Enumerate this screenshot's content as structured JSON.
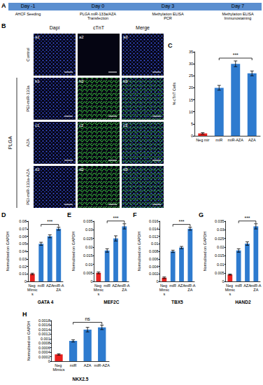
{
  "timeline": {
    "panel": "A",
    "days": [
      {
        "label": "Day -1",
        "event": [
          "AHCF Seeding"
        ]
      },
      {
        "label": "Day 0",
        "event": [
          "PLGA miR-133a/AZA",
          "Transfection"
        ]
      },
      {
        "label": "Day 3",
        "event": [
          "Methylation ELISA",
          "PCR"
        ]
      },
      {
        "label": "Day 7",
        "event": [
          "Methylation ELISA",
          "Immunostaining"
        ]
      }
    ]
  },
  "micrographs": {
    "panel": "B",
    "columns": [
      "Dapi",
      "cTnT",
      "Merge"
    ],
    "group": "PLGA",
    "rows": [
      {
        "label": "Control",
        "cells": [
          "a1",
          "a2",
          "a3"
        ]
      },
      {
        "label": "PEI-miR-133a",
        "cells": [
          "b1",
          "b2",
          "b3"
        ]
      },
      {
        "label": "AZA",
        "cells": [
          "c1",
          "c2",
          "c3"
        ]
      },
      {
        "label": "PEI-miR-133a-AZA",
        "cells": [
          "d1",
          "d2",
          "d3"
        ]
      }
    ]
  },
  "chart_data": [
    {
      "type": "bar",
      "panel": "C",
      "ylabel": "% cTnT Cells",
      "categories": [
        "Neg mir",
        "miR",
        "miR-AZA",
        "AZA"
      ],
      "values": [
        1,
        20,
        30,
        26
      ],
      "errors": [
        0.3,
        1,
        1.2,
        1
      ],
      "colors": [
        "#e8201e",
        "#2e7bcf",
        "#2e7bcf",
        "#2e7bcf"
      ],
      "ylim": [
        0,
        35
      ],
      "yticks": [
        0,
        5,
        10,
        15,
        20,
        25,
        30,
        35
      ],
      "grid": false,
      "annotation": {
        "text": "***",
        "from": "miR",
        "to": "AZA"
      }
    },
    {
      "type": "bar",
      "panel": "D",
      "ylabel": "Normalised on GAPDH",
      "xlabel": "GATA 4",
      "categories": [
        "Neg Mimics",
        "miR",
        "AZA",
        "miR-AZA"
      ],
      "values": [
        0.01,
        0.05,
        0.06,
        0.07
      ],
      "errors": [
        0.001,
        0.002,
        0.002,
        0.002
      ],
      "colors": [
        "#e8201e",
        "#2e7bcf",
        "#2e7bcf",
        "#2e7bcf"
      ],
      "ylim": [
        0,
        0.08
      ],
      "yticks": [
        0,
        0.01,
        0.02,
        0.03,
        0.04,
        0.05,
        0.06,
        0.07,
        0.08
      ],
      "grid": false,
      "annotation": {
        "text": "***",
        "from": "miR",
        "to": "miR-AZA"
      }
    },
    {
      "type": "bar",
      "panel": "E",
      "ylabel": "Normalised on GAPDH",
      "xlabel": "MEF2C",
      "categories": [
        "Neg Mimics",
        "miR",
        "AZA",
        "miR-AZA"
      ],
      "values": [
        0.005,
        0.018,
        0.025,
        0.032
      ],
      "errors": [
        0.0005,
        0.001,
        0.0015,
        0.0015
      ],
      "colors": [
        "#e8201e",
        "#2e7bcf",
        "#2e7bcf",
        "#2e7bcf"
      ],
      "ylim": [
        0,
        0.035
      ],
      "yticks": [
        0,
        0.005,
        0.01,
        0.015,
        0.02,
        0.025,
        0.03,
        0.035
      ],
      "grid": false,
      "annotation": {
        "text": "***",
        "from": "miR",
        "to": "miR-AZA"
      }
    },
    {
      "type": "bar",
      "panel": "F",
      "ylabel": "Normalised on GAPDH",
      "xlabel": "TBX5",
      "categories": [
        "Neg Mimics",
        "miR",
        "AZA",
        "miR-AZA"
      ],
      "values": [
        0.001,
        0.008,
        0.009,
        0.014
      ],
      "errors": [
        0.0002,
        0.0003,
        0.0003,
        0.0004
      ],
      "colors": [
        "#e8201e",
        "#2e7bcf",
        "#2e7bcf",
        "#2e7bcf"
      ],
      "ylim": [
        0,
        0.016
      ],
      "yticks": [
        0,
        0.002,
        0.004,
        0.006,
        0.008,
        0.01,
        0.012,
        0.014,
        0.016
      ],
      "grid": false,
      "annotation": {
        "text": "***",
        "from": "miR",
        "to": "miR-AZA"
      }
    },
    {
      "type": "bar",
      "panel": "G",
      "ylabel": "Normalised on GAPDH",
      "xlabel": "HAND2",
      "categories": [
        "Neg Mimics",
        "miR",
        "AZA",
        "miR-AZA"
      ],
      "values": [
        0.004,
        0.018,
        0.022,
        0.032
      ],
      "errors": [
        0.0003,
        0.001,
        0.001,
        0.0015
      ],
      "colors": [
        "#e8201e",
        "#2e7bcf",
        "#2e7bcf",
        "#2e7bcf"
      ],
      "ylim": [
        0,
        0.035
      ],
      "yticks": [
        0,
        0.005,
        0.01,
        0.015,
        0.02,
        0.025,
        0.03,
        0.035
      ],
      "grid": false,
      "annotation": {
        "text": "***",
        "from": "miR",
        "to": "miR-AZA"
      }
    },
    {
      "type": "bar",
      "panel": "H",
      "ylabel": "Normalised on GAPDH",
      "xlabel": "NKX2.5",
      "categories": [
        "Neg Mimics",
        "miR",
        "AZA",
        "miR-AZA"
      ],
      "values": [
        0.0003,
        0.0009,
        0.0014,
        0.0015
      ],
      "errors": [
        3e-05,
        5e-05,
        0.0001,
        0.0001
      ],
      "colors": [
        "#e8201e",
        "#2e7bcf",
        "#2e7bcf",
        "#2e7bcf"
      ],
      "ylim": [
        0,
        0.0018
      ],
      "yticks": [
        0,
        0.0002,
        0.0004,
        0.0006,
        0.0008,
        0.001,
        0.0012,
        0.0014,
        0.0016,
        0.0018
      ],
      "grid": false,
      "annotation": {
        "text": "ns",
        "from": "miR",
        "to": "miR-AZA"
      }
    }
  ]
}
